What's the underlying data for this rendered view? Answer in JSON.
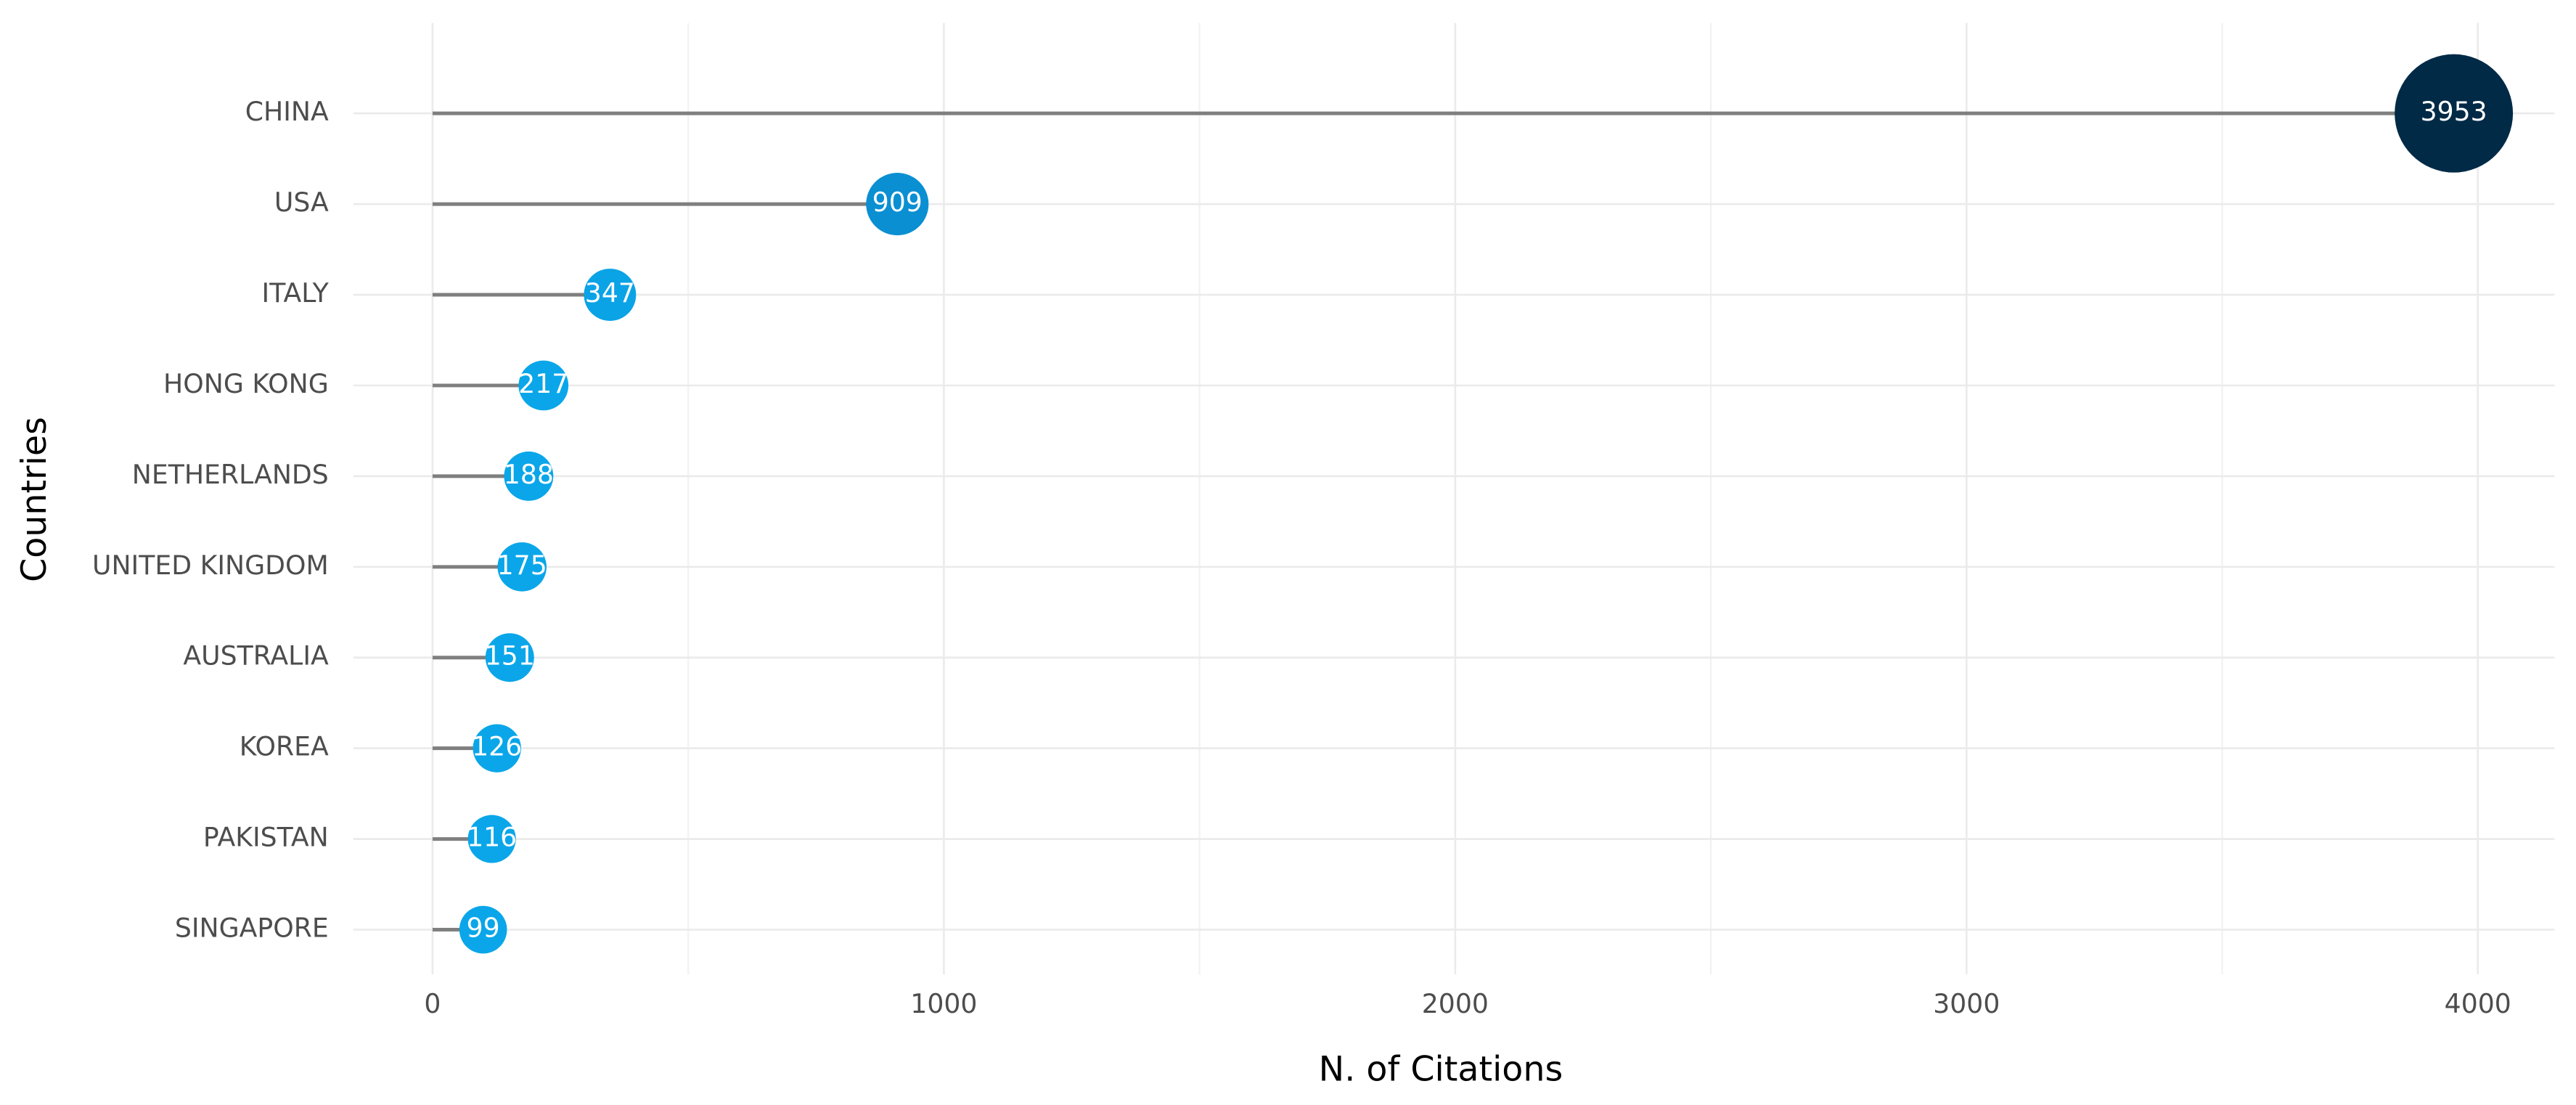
{
  "chart_data": {
    "type": "lollipop",
    "x_label": "N. of Citations",
    "y_label": "Countries",
    "categories": [
      "CHINA",
      "USA",
      "ITALY",
      "HONG KONG",
      "NETHERLANDS",
      "UNITED KINGDOM",
      "AUSTRALIA",
      "KOREA",
      "PAKISTAN",
      "SINGAPORE"
    ],
    "values": [
      3953,
      909,
      347,
      217,
      188,
      175,
      151,
      126,
      116,
      99
    ],
    "colors": [
      "#012a47",
      "#0a8fd2",
      "#0aa3e6",
      "#0aa6e9",
      "#0aa6e9",
      "#0aa6e9",
      "#0aa6e9",
      "#0aa6e9",
      "#0aa6e9",
      "#0aa6e9"
    ],
    "stem_color": "#7f7f7f",
    "xlim": [
      -155,
      4150
    ],
    "xticks": [
      0,
      1000,
      2000,
      3000,
      4000
    ],
    "grid": true
  }
}
